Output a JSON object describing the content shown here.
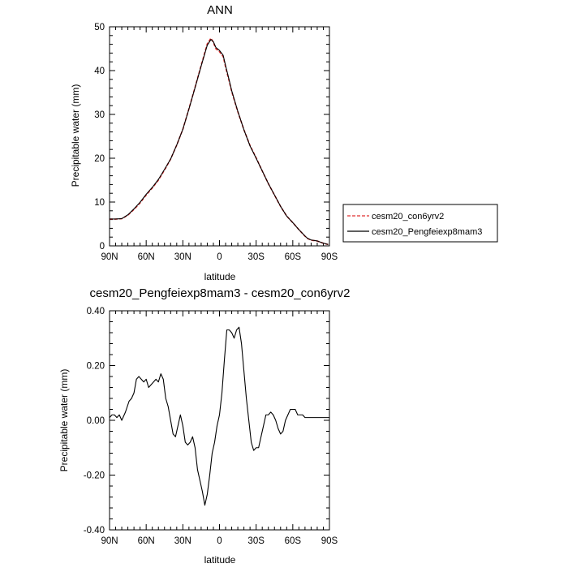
{
  "chart_data": [
    {
      "type": "line",
      "title": "ANN",
      "xlabel": "latitude",
      "ylabel": "Precipitable water (mm)",
      "xlim": [
        90,
        -90
      ],
      "ylim": [
        0,
        50
      ],
      "x_ticks": [
        {
          "value": 90,
          "label": "90N"
        },
        {
          "value": 60,
          "label": "60N"
        },
        {
          "value": 30,
          "label": "30N"
        },
        {
          "value": 0,
          "label": "0"
        },
        {
          "value": -30,
          "label": "30S"
        },
        {
          "value": -60,
          "label": "60S"
        },
        {
          "value": -90,
          "label": "90S"
        }
      ],
      "y_ticks": [
        {
          "value": 0,
          "label": "0"
        },
        {
          "value": 10,
          "label": "10"
        },
        {
          "value": 20,
          "label": "20"
        },
        {
          "value": 30,
          "label": "30"
        },
        {
          "value": 40,
          "label": "40"
        },
        {
          "value": 50,
          "label": "50"
        }
      ],
      "legend_position": "right",
      "series": [
        {
          "name": "cesm20_con6yrv2",
          "color": "#e03030",
          "dash": "dashed",
          "x": [
            90,
            85,
            80,
            75,
            70,
            65,
            60,
            55,
            50,
            45,
            40,
            35,
            30,
            25,
            20,
            15,
            10,
            7,
            5,
            3,
            0,
            -3,
            -5,
            -8,
            -10,
            -15,
            -20,
            -25,
            -30,
            -35,
            -40,
            -45,
            -50,
            -55,
            -60,
            -65,
            -70,
            -72,
            -75,
            -80,
            -85,
            -89
          ],
          "y": [
            6.1,
            6.1,
            6.2,
            7.0,
            8.3,
            9.8,
            11.6,
            13.2,
            15.0,
            17.3,
            19.8,
            23.0,
            26.6,
            31.3,
            36.2,
            41.2,
            46.1,
            47.4,
            46.4,
            45.0,
            44.3,
            43.2,
            40.8,
            37.5,
            35.2,
            30.6,
            26.5,
            22.9,
            20.1,
            17.1,
            14.2,
            11.6,
            9.0,
            6.8,
            5.3,
            3.7,
            2.2,
            1.7,
            1.3,
            1.1,
            0.6,
            0.3
          ]
        },
        {
          "name": "cesm20_Pengfeiexp8mam3",
          "color": "#000000",
          "dash": "solid",
          "x": [
            90,
            85,
            80,
            75,
            70,
            65,
            60,
            55,
            50,
            45,
            40,
            35,
            30,
            25,
            20,
            15,
            10,
            7,
            5,
            3,
            0,
            -3,
            -5,
            -8,
            -10,
            -15,
            -20,
            -25,
            -30,
            -35,
            -40,
            -45,
            -50,
            -55,
            -60,
            -65,
            -70,
            -72,
            -75,
            -80,
            -85,
            -89
          ],
          "y": [
            6.12,
            6.12,
            6.21,
            7.08,
            8.44,
            9.95,
            11.76,
            13.35,
            15.16,
            17.45,
            19.81,
            23.02,
            26.6,
            31.25,
            36.11,
            41.05,
            45.8,
            47.1,
            46.6,
            45.3,
            44.6,
            43.5,
            41.1,
            37.75,
            35.4,
            30.7,
            26.5,
            22.8,
            20.0,
            17.1,
            14.22,
            11.63,
            9.02,
            6.8,
            5.3,
            3.7,
            2.24,
            1.74,
            1.34,
            1.13,
            0.61,
            0.31
          ]
        }
      ]
    },
    {
      "type": "line",
      "title": "cesm20_Pengfeiexp8mam3 - cesm20_con6yrv2",
      "xlabel": "latitude",
      "ylabel": "Precipitable water (mm)",
      "xlim": [
        90,
        -90
      ],
      "ylim": [
        -0.4,
        0.4
      ],
      "x_ticks": [
        {
          "value": 90,
          "label": "90N"
        },
        {
          "value": 60,
          "label": "60N"
        },
        {
          "value": 30,
          "label": "30N"
        },
        {
          "value": 0,
          "label": "0"
        },
        {
          "value": -30,
          "label": "30S"
        },
        {
          "value": -60,
          "label": "60S"
        },
        {
          "value": -90,
          "label": "90S"
        }
      ],
      "y_ticks": [
        {
          "value": -0.4,
          "label": "-0.40"
        },
        {
          "value": -0.2,
          "label": "-0.20"
        },
        {
          "value": 0.0,
          "label": "0.00"
        },
        {
          "value": 0.2,
          "label": "0.20"
        },
        {
          "value": 0.4,
          "label": "0.40"
        }
      ],
      "series": [
        {
          "color": "#000000",
          "dash": "solid",
          "x": [
            90,
            88,
            86,
            84,
            82,
            80,
            77,
            74,
            72,
            70,
            68,
            66,
            64,
            62,
            60,
            58,
            56,
            54,
            52,
            50,
            48,
            46,
            44,
            42,
            40,
            38,
            36,
            34,
            32,
            30,
            28,
            26,
            24,
            22,
            20,
            18,
            16,
            14,
            12,
            10,
            8,
            6,
            4,
            2,
            0,
            -2,
            -4,
            -6,
            -8,
            -10,
            -12,
            -14,
            -16,
            -18,
            -20,
            -22,
            -24,
            -26,
            -28,
            -30,
            -32,
            -34,
            -36,
            -38,
            -40,
            -42,
            -44,
            -46,
            -48,
            -50,
            -52,
            -54,
            -56,
            -58,
            -60,
            -62,
            -64,
            -66,
            -68,
            -70,
            -72,
            -74,
            -76,
            -78,
            -80,
            -82,
            -84,
            -86,
            -88,
            -90
          ],
          "y": [
            0.01,
            0.02,
            0.02,
            0.01,
            0.02,
            0.0,
            0.03,
            0.07,
            0.08,
            0.1,
            0.15,
            0.16,
            0.15,
            0.14,
            0.15,
            0.12,
            0.13,
            0.14,
            0.15,
            0.14,
            0.17,
            0.15,
            0.08,
            0.05,
            0.0,
            -0.05,
            -0.06,
            -0.02,
            0.02,
            -0.02,
            -0.08,
            -0.09,
            -0.08,
            -0.06,
            -0.1,
            -0.18,
            -0.22,
            -0.26,
            -0.31,
            -0.27,
            -0.2,
            -0.12,
            -0.08,
            -0.02,
            0.02,
            0.1,
            0.22,
            0.33,
            0.33,
            0.32,
            0.3,
            0.33,
            0.34,
            0.28,
            0.18,
            0.08,
            0.0,
            -0.08,
            -0.11,
            -0.1,
            -0.1,
            -0.06,
            -0.02,
            0.02,
            0.02,
            0.03,
            0.02,
            0.0,
            -0.03,
            -0.05,
            -0.04,
            0.0,
            0.02,
            0.04,
            0.04,
            0.04,
            0.02,
            0.02,
            0.02,
            0.01,
            0.01,
            0.01,
            0.01,
            0.01,
            0.01,
            0.01,
            0.01,
            0.01,
            0.01,
            0.01
          ]
        }
      ]
    }
  ]
}
